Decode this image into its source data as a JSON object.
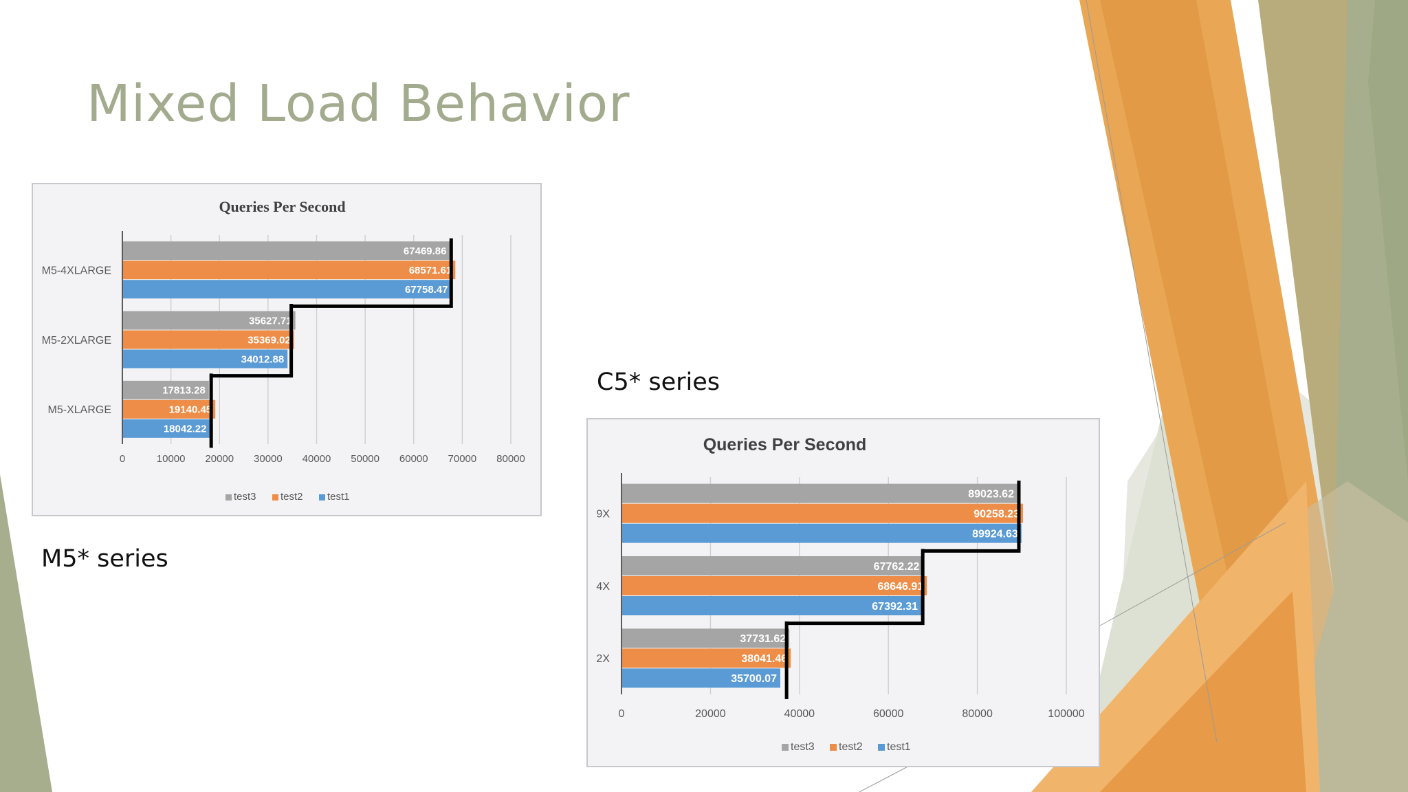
{
  "slide": {
    "title": "Mixed Load Behavior",
    "caption_m5": "M5* series",
    "caption_c5": "C5* series"
  },
  "theme": {
    "title_color": "#a3ab8e",
    "orange": "#e8963d",
    "olive": "#a6ae8e",
    "pale_green": "#dfe3d6"
  },
  "chart_data": [
    {
      "type": "bar",
      "orientation": "horizontal",
      "title": "Queries Per Second",
      "categories": [
        "M5-XLARGE",
        "M5-2XLARGE",
        "M5-4XLARGE"
      ],
      "series": [
        {
          "name": "test3",
          "color": "#a5a5a5",
          "values": [
            17813.28,
            35627.71,
            67469.86
          ]
        },
        {
          "name": "test2",
          "color": "#ed8d47",
          "values": [
            19140.45,
            35369.02,
            68571.61
          ]
        },
        {
          "name": "test1",
          "color": "#5b9bd5",
          "values": [
            18042.22,
            34012.88,
            67758.47
          ]
        }
      ],
      "xlim": [
        0,
        80000
      ],
      "x_ticks": [
        0,
        10000,
        20000,
        30000,
        40000,
        50000,
        60000,
        70000,
        80000
      ],
      "grid": true,
      "legend": "bottom",
      "annotation": "black step line tracing group maxima"
    },
    {
      "type": "bar",
      "orientation": "horizontal",
      "title": "Queries Per Second",
      "categories": [
        "2X",
        "4X",
        "9X"
      ],
      "series": [
        {
          "name": "test3",
          "color": "#a5a5a5",
          "values": [
            37731.62,
            67762.22,
            89023.62
          ]
        },
        {
          "name": "test2",
          "color": "#ed8d47",
          "values": [
            38041.46,
            68646.91,
            90258.23
          ]
        },
        {
          "name": "test1",
          "color": "#5b9bd5",
          "values": [
            35700.07,
            67392.31,
            89924.63
          ]
        }
      ],
      "xlim": [
        0,
        100000
      ],
      "x_ticks": [
        0,
        20000,
        40000,
        60000,
        80000,
        100000
      ],
      "grid": true,
      "legend": "bottom",
      "annotation": "black step line tracing group maxima"
    }
  ]
}
